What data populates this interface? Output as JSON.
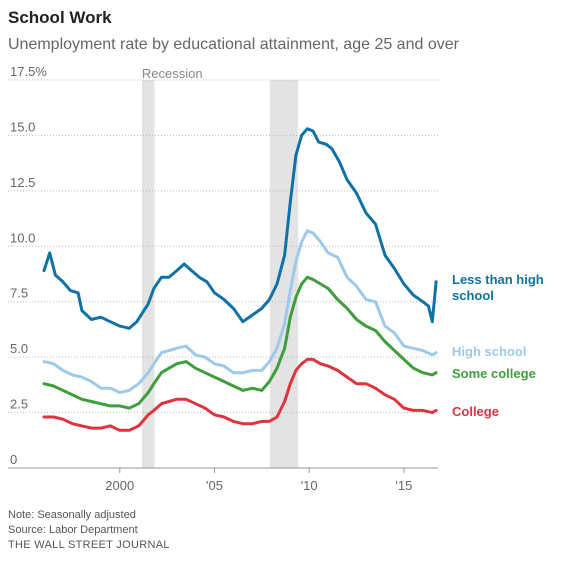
{
  "title": "School Work",
  "subtitle": "Unemployment rate by educational attainment, age 25 and over",
  "notes": [
    "Note: Seasonally adjusted",
    "Source: Labor Department"
  ],
  "publisher": "THE WALL STREET JOURNAL",
  "chart_data": {
    "type": "line",
    "title": "School Work",
    "subtitle": "Unemployment rate by educational attainment, age 25 and over",
    "y_ticks": [
      {
        "value": 0,
        "label": "0"
      },
      {
        "value": 2.5,
        "label": "2.5"
      },
      {
        "value": 5.0,
        "label": "5.0"
      },
      {
        "value": 7.5,
        "label": "7.5"
      },
      {
        "value": 10.0,
        "label": "10.0"
      },
      {
        "value": 12.5,
        "label": "12.5"
      },
      {
        "value": 15.0,
        "label": "15.0"
      },
      {
        "value": 17.5,
        "label": "17.5%"
      }
    ],
    "x_ticks": [
      {
        "value": 2000,
        "label": "2000"
      },
      {
        "value": 2005,
        "label": "'05"
      },
      {
        "value": 2010,
        "label": "'10"
      },
      {
        "value": 2015,
        "label": "'15"
      }
    ],
    "xlim": [
      1996,
      2016.8
    ],
    "ylim": [
      0,
      17.5
    ],
    "grid": "horizontal",
    "recessions": [
      {
        "start": 2001.17,
        "end": 2001.83,
        "label": "Recession"
      },
      {
        "start": 2007.92,
        "end": 2009.42,
        "label": ""
      }
    ],
    "series": [
      {
        "name": "Less than high school",
        "color": "#0f72a6",
        "points": [
          [
            1996.0,
            8.9
          ],
          [
            1996.3,
            9.7
          ],
          [
            1996.6,
            8.7
          ],
          [
            1997.0,
            8.4
          ],
          [
            1997.4,
            8.0
          ],
          [
            1997.8,
            7.9
          ],
          [
            1998.0,
            7.1
          ],
          [
            1998.5,
            6.7
          ],
          [
            1999.0,
            6.8
          ],
          [
            1999.5,
            6.6
          ],
          [
            2000.0,
            6.4
          ],
          [
            2000.5,
            6.3
          ],
          [
            2000.9,
            6.6
          ],
          [
            2001.2,
            7.0
          ],
          [
            2001.5,
            7.4
          ],
          [
            2001.8,
            8.1
          ],
          [
            2002.2,
            8.6
          ],
          [
            2002.6,
            8.6
          ],
          [
            2003.0,
            8.9
          ],
          [
            2003.4,
            9.2
          ],
          [
            2003.8,
            8.9
          ],
          [
            2004.2,
            8.6
          ],
          [
            2004.6,
            8.4
          ],
          [
            2005.0,
            7.9
          ],
          [
            2005.5,
            7.6
          ],
          [
            2006.0,
            7.2
          ],
          [
            2006.5,
            6.6
          ],
          [
            2007.0,
            6.9
          ],
          [
            2007.5,
            7.2
          ],
          [
            2007.9,
            7.6
          ],
          [
            2008.3,
            8.3
          ],
          [
            2008.7,
            9.6
          ],
          [
            2009.0,
            12.0
          ],
          [
            2009.3,
            14.1
          ],
          [
            2009.6,
            15.0
          ],
          [
            2009.9,
            15.3
          ],
          [
            2010.2,
            15.2
          ],
          [
            2010.5,
            14.7
          ],
          [
            2010.9,
            14.6
          ],
          [
            2011.2,
            14.4
          ],
          [
            2011.6,
            13.8
          ],
          [
            2012.0,
            13.0
          ],
          [
            2012.5,
            12.4
          ],
          [
            2013.0,
            11.5
          ],
          [
            2013.5,
            11.0
          ],
          [
            2014.0,
            9.6
          ],
          [
            2014.5,
            9.0
          ],
          [
            2015.0,
            8.3
          ],
          [
            2015.5,
            7.8
          ],
          [
            2016.0,
            7.5
          ],
          [
            2016.3,
            7.3
          ],
          [
            2016.5,
            6.6
          ],
          [
            2016.7,
            8.4
          ]
        ]
      },
      {
        "name": "High school",
        "color": "#9ec9ea",
        "points": [
          [
            1996.0,
            4.8
          ],
          [
            1996.5,
            4.7
          ],
          [
            1997.0,
            4.4
          ],
          [
            1997.5,
            4.2
          ],
          [
            1998.0,
            4.1
          ],
          [
            1998.5,
            3.9
          ],
          [
            1999.0,
            3.6
          ],
          [
            1999.5,
            3.6
          ],
          [
            2000.0,
            3.4
          ],
          [
            2000.5,
            3.5
          ],
          [
            2001.0,
            3.8
          ],
          [
            2001.5,
            4.3
          ],
          [
            2001.8,
            4.7
          ],
          [
            2002.2,
            5.2
          ],
          [
            2002.6,
            5.3
          ],
          [
            2003.0,
            5.4
          ],
          [
            2003.5,
            5.5
          ],
          [
            2004.0,
            5.1
          ],
          [
            2004.5,
            5.0
          ],
          [
            2005.0,
            4.7
          ],
          [
            2005.5,
            4.6
          ],
          [
            2006.0,
            4.3
          ],
          [
            2006.5,
            4.3
          ],
          [
            2007.0,
            4.4
          ],
          [
            2007.5,
            4.4
          ],
          [
            2007.9,
            4.8
          ],
          [
            2008.3,
            5.4
          ],
          [
            2008.7,
            6.5
          ],
          [
            2009.0,
            8.0
          ],
          [
            2009.3,
            9.3
          ],
          [
            2009.6,
            10.2
          ],
          [
            2009.9,
            10.7
          ],
          [
            2010.2,
            10.6
          ],
          [
            2010.6,
            10.2
          ],
          [
            2011.0,
            9.7
          ],
          [
            2011.5,
            9.5
          ],
          [
            2012.0,
            8.6
          ],
          [
            2012.5,
            8.2
          ],
          [
            2013.0,
            7.6
          ],
          [
            2013.5,
            7.5
          ],
          [
            2014.0,
            6.4
          ],
          [
            2014.5,
            6.1
          ],
          [
            2015.0,
            5.5
          ],
          [
            2015.5,
            5.4
          ],
          [
            2016.0,
            5.3
          ],
          [
            2016.5,
            5.1
          ],
          [
            2016.7,
            5.2
          ]
        ]
      },
      {
        "name": "Some college",
        "color": "#3f9e3c",
        "points": [
          [
            1996.0,
            3.8
          ],
          [
            1996.5,
            3.7
          ],
          [
            1997.0,
            3.5
          ],
          [
            1997.5,
            3.3
          ],
          [
            1998.0,
            3.1
          ],
          [
            1998.5,
            3.0
          ],
          [
            1999.0,
            2.9
          ],
          [
            1999.5,
            2.8
          ],
          [
            2000.0,
            2.8
          ],
          [
            2000.5,
            2.7
          ],
          [
            2001.0,
            2.9
          ],
          [
            2001.5,
            3.4
          ],
          [
            2001.8,
            3.8
          ],
          [
            2002.2,
            4.3
          ],
          [
            2002.6,
            4.5
          ],
          [
            2003.0,
            4.7
          ],
          [
            2003.5,
            4.8
          ],
          [
            2004.0,
            4.5
          ],
          [
            2004.5,
            4.3
          ],
          [
            2005.0,
            4.1
          ],
          [
            2005.5,
            3.9
          ],
          [
            2006.0,
            3.7
          ],
          [
            2006.5,
            3.5
          ],
          [
            2007.0,
            3.6
          ],
          [
            2007.5,
            3.5
          ],
          [
            2007.9,
            3.9
          ],
          [
            2008.3,
            4.5
          ],
          [
            2008.7,
            5.4
          ],
          [
            2009.0,
            6.8
          ],
          [
            2009.3,
            7.7
          ],
          [
            2009.6,
            8.3
          ],
          [
            2009.9,
            8.6
          ],
          [
            2010.2,
            8.5
          ],
          [
            2010.6,
            8.3
          ],
          [
            2011.0,
            8.1
          ],
          [
            2011.5,
            7.6
          ],
          [
            2012.0,
            7.2
          ],
          [
            2012.5,
            6.7
          ],
          [
            2013.0,
            6.4
          ],
          [
            2013.5,
            6.2
          ],
          [
            2014.0,
            5.7
          ],
          [
            2014.5,
            5.3
          ],
          [
            2015.0,
            4.9
          ],
          [
            2015.5,
            4.5
          ],
          [
            2016.0,
            4.3
          ],
          [
            2016.5,
            4.2
          ],
          [
            2016.7,
            4.3
          ]
        ]
      },
      {
        "name": "College",
        "color": "#e0333d",
        "points": [
          [
            1996.0,
            2.3
          ],
          [
            1996.5,
            2.3
          ],
          [
            1997.0,
            2.2
          ],
          [
            1997.5,
            2.0
          ],
          [
            1998.0,
            1.9
          ],
          [
            1998.5,
            1.8
          ],
          [
            1999.0,
            1.8
          ],
          [
            1999.5,
            1.9
          ],
          [
            2000.0,
            1.7
          ],
          [
            2000.5,
            1.7
          ],
          [
            2001.0,
            1.9
          ],
          [
            2001.5,
            2.4
          ],
          [
            2001.8,
            2.6
          ],
          [
            2002.2,
            2.9
          ],
          [
            2002.6,
            3.0
          ],
          [
            2003.0,
            3.1
          ],
          [
            2003.5,
            3.1
          ],
          [
            2004.0,
            2.9
          ],
          [
            2004.5,
            2.7
          ],
          [
            2005.0,
            2.4
          ],
          [
            2005.5,
            2.3
          ],
          [
            2006.0,
            2.1
          ],
          [
            2006.5,
            2.0
          ],
          [
            2007.0,
            2.0
          ],
          [
            2007.5,
            2.1
          ],
          [
            2007.9,
            2.1
          ],
          [
            2008.3,
            2.3
          ],
          [
            2008.7,
            3.0
          ],
          [
            2009.0,
            3.8
          ],
          [
            2009.3,
            4.4
          ],
          [
            2009.6,
            4.7
          ],
          [
            2009.9,
            4.9
          ],
          [
            2010.2,
            4.9
          ],
          [
            2010.6,
            4.7
          ],
          [
            2011.0,
            4.6
          ],
          [
            2011.5,
            4.4
          ],
          [
            2012.0,
            4.1
          ],
          [
            2012.5,
            3.8
          ],
          [
            2013.0,
            3.8
          ],
          [
            2013.5,
            3.6
          ],
          [
            2014.0,
            3.3
          ],
          [
            2014.5,
            3.1
          ],
          [
            2015.0,
            2.7
          ],
          [
            2015.5,
            2.6
          ],
          [
            2016.0,
            2.6
          ],
          [
            2016.5,
            2.5
          ],
          [
            2016.7,
            2.6
          ]
        ]
      }
    ],
    "legend_labels": [
      {
        "series": "Less than high school",
        "lines": [
          "Less than high",
          "school"
        ]
      },
      {
        "series": "High school",
        "lines": [
          "High school"
        ]
      },
      {
        "series": "Some college",
        "lines": [
          "Some college"
        ]
      },
      {
        "series": "College",
        "lines": [
          "College"
        ]
      }
    ]
  }
}
